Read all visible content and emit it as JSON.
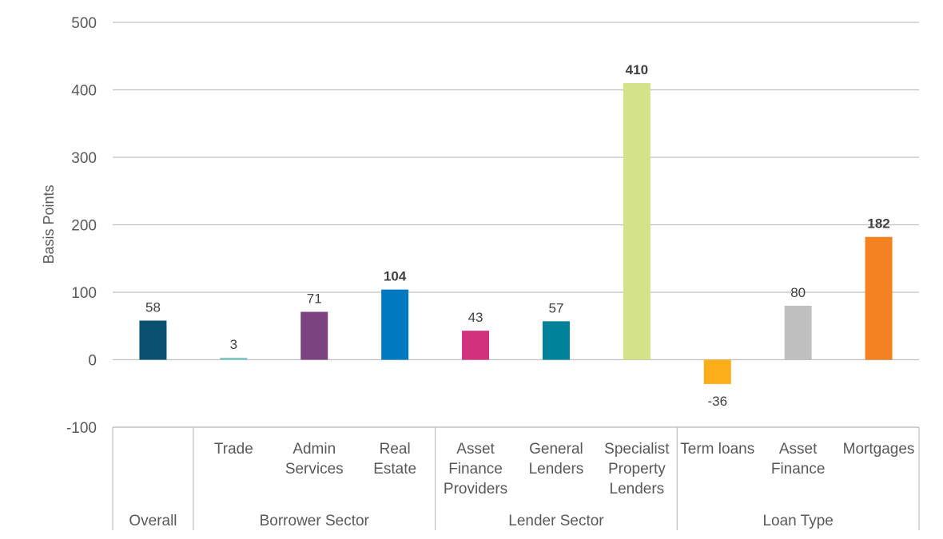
{
  "chart_data": {
    "type": "bar",
    "title": "",
    "xlabel": "",
    "ylabel": "Basis Points",
    "ylim": [
      -100,
      500
    ],
    "yticks": [
      -100,
      0,
      100,
      200,
      300,
      400,
      500
    ],
    "grid": true,
    "categories": [
      {
        "label": "Overall",
        "lines": [],
        "group": "Overall",
        "value": 58,
        "color": "#0A5070",
        "bold": false
      },
      {
        "label": "Trade",
        "lines": [
          "Trade"
        ],
        "group": "Borrower Sector",
        "value": 3,
        "color": "#7FCBC4",
        "bold": false
      },
      {
        "label": "Admin Services",
        "lines": [
          "Admin",
          "Services"
        ],
        "group": "Borrower Sector",
        "value": 71,
        "color": "#7B4480",
        "bold": false
      },
      {
        "label": "Real Estate",
        "lines": [
          "Real",
          "Estate"
        ],
        "group": "Borrower Sector",
        "value": 104,
        "color": "#0079C1",
        "bold": true
      },
      {
        "label": "Asset Finance Providers",
        "lines": [
          "Asset",
          "Finance",
          "Providers"
        ],
        "group": "Lender Sector",
        "value": 43,
        "color": "#D2317E",
        "bold": false
      },
      {
        "label": "General Lenders",
        "lines": [
          "General",
          "Lenders"
        ],
        "group": "Lender Sector",
        "value": 57,
        "color": "#00829B",
        "bold": false
      },
      {
        "label": "Specialist Property Lenders",
        "lines": [
          "Specialist",
          "Property",
          "Lenders"
        ],
        "group": "Lender Sector",
        "value": 410,
        "color": "#D4E388",
        "bold": true
      },
      {
        "label": "Term loans",
        "lines": [
          "Term loans"
        ],
        "group": "Loan Type",
        "value": -36,
        "color": "#FBAE17",
        "bold": false
      },
      {
        "label": "Asset Finance",
        "lines": [
          "Asset",
          "Finance"
        ],
        "group": "Loan Type",
        "value": 80,
        "color": "#BFBFBF",
        "bold": false
      },
      {
        "label": "Mortgages",
        "lines": [
          "Mortgages"
        ],
        "group": "Loan Type",
        "value": 182,
        "color": "#F58220",
        "bold": true
      }
    ],
    "groups": [
      "Overall",
      "Borrower Sector",
      "Lender Sector",
      "Loan Type"
    ],
    "legend": "none"
  }
}
